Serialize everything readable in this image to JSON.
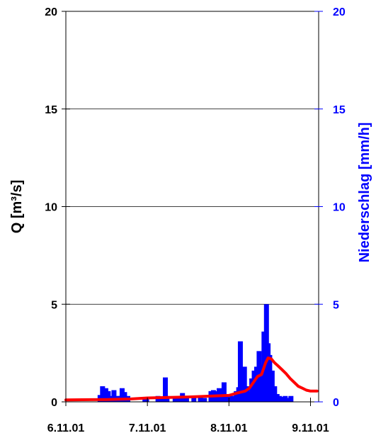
{
  "chart_data": {
    "type": "bar+line",
    "left_axis": {
      "label": "Q [m³/s]",
      "ylim": [
        0,
        20
      ],
      "ticks": [
        0,
        5,
        10,
        15,
        20
      ],
      "tick_labels": [
        "0",
        "5",
        "10",
        "15",
        "20"
      ],
      "color": "#000000"
    },
    "right_axis": {
      "label": "Niederschlag [mm/h]",
      "ylim": [
        0,
        20
      ],
      "ticks": [
        0,
        5,
        10,
        15,
        20
      ],
      "tick_labels": [
        "0",
        "5",
        "10",
        "15",
        "20"
      ],
      "color": "#0000ff"
    },
    "x_axis": {
      "unit": "days",
      "xlim": [
        6.0,
        9.1
      ],
      "ticks": [
        6,
        7,
        8,
        9
      ],
      "tick_labels": [
        "6.11.01",
        "7.11.01",
        "8.11.01",
        "9.11.01"
      ]
    },
    "grid": "horizontal",
    "series": [
      {
        "kind": "bar",
        "axis": "right",
        "color": "#0000ff",
        "points": [
          [
            6.42,
            0.35
          ],
          [
            6.45,
            0.8
          ],
          [
            6.49,
            0.7
          ],
          [
            6.52,
            0.55
          ],
          [
            6.56,
            0.3
          ],
          [
            6.59,
            0.6
          ],
          [
            6.63,
            0.3
          ],
          [
            6.66,
            0.3
          ],
          [
            6.69,
            0.7
          ],
          [
            6.72,
            0.5
          ],
          [
            6.76,
            0.3
          ],
          [
            6.97,
            0.25
          ],
          [
            6.99,
            0.15
          ],
          [
            7.13,
            0.3
          ],
          [
            7.15,
            0.15
          ],
          [
            7.19,
            0.25
          ],
          [
            7.22,
            1.25
          ],
          [
            7.24,
            0.3
          ],
          [
            7.34,
            0.2
          ],
          [
            7.38,
            0.3
          ],
          [
            7.43,
            0.45
          ],
          [
            7.48,
            0.2
          ],
          [
            7.57,
            0.25
          ],
          [
            7.65,
            0.25
          ],
          [
            7.7,
            0.2
          ],
          [
            7.78,
            0.55
          ],
          [
            7.81,
            0.6
          ],
          [
            7.85,
            0.55
          ],
          [
            7.88,
            0.7
          ],
          [
            7.91,
            0.55
          ],
          [
            7.94,
            1.0
          ],
          [
            7.97,
            0.4
          ],
          [
            8.03,
            0.3
          ],
          [
            8.06,
            0.3
          ],
          [
            8.09,
            0.55
          ],
          [
            8.12,
            0.75
          ],
          [
            8.14,
            3.1
          ],
          [
            8.16,
            1.2
          ],
          [
            8.19,
            1.8
          ],
          [
            8.22,
            0.8
          ],
          [
            8.25,
            0.5
          ],
          [
            8.28,
            1.2
          ],
          [
            8.31,
            1.6
          ],
          [
            8.34,
            1.8
          ],
          [
            8.37,
            2.6
          ],
          [
            8.4,
            1.9
          ],
          [
            8.43,
            3.6
          ],
          [
            8.46,
            5.0
          ],
          [
            8.48,
            3.0
          ],
          [
            8.5,
            2.4
          ],
          [
            8.53,
            1.6
          ],
          [
            8.56,
            0.8
          ],
          [
            8.59,
            0.4
          ],
          [
            8.62,
            0.3
          ],
          [
            8.65,
            0.25
          ],
          [
            8.69,
            0.3
          ],
          [
            8.72,
            0.2
          ],
          [
            8.76,
            0.3
          ]
        ]
      },
      {
        "kind": "line",
        "axis": "left",
        "color": "#ff0000",
        "points": [
          [
            6.0,
            0.1
          ],
          [
            6.5,
            0.12
          ],
          [
            6.8,
            0.15
          ],
          [
            7.0,
            0.2
          ],
          [
            7.5,
            0.25
          ],
          [
            7.8,
            0.3
          ],
          [
            8.0,
            0.33
          ],
          [
            8.1,
            0.45
          ],
          [
            8.2,
            0.55
          ],
          [
            8.25,
            0.7
          ],
          [
            8.3,
            1.0
          ],
          [
            8.35,
            1.3
          ],
          [
            8.4,
            1.4
          ],
          [
            8.45,
            2.0
          ],
          [
            8.48,
            2.25
          ],
          [
            8.52,
            2.2
          ],
          [
            8.56,
            2.0
          ],
          [
            8.6,
            1.85
          ],
          [
            8.65,
            1.65
          ],
          [
            8.7,
            1.45
          ],
          [
            8.75,
            1.2
          ],
          [
            8.8,
            1.0
          ],
          [
            8.85,
            0.8
          ],
          [
            8.9,
            0.7
          ],
          [
            8.95,
            0.6
          ],
          [
            9.0,
            0.55
          ],
          [
            9.05,
            0.55
          ],
          [
            9.08,
            0.55
          ]
        ]
      }
    ]
  }
}
